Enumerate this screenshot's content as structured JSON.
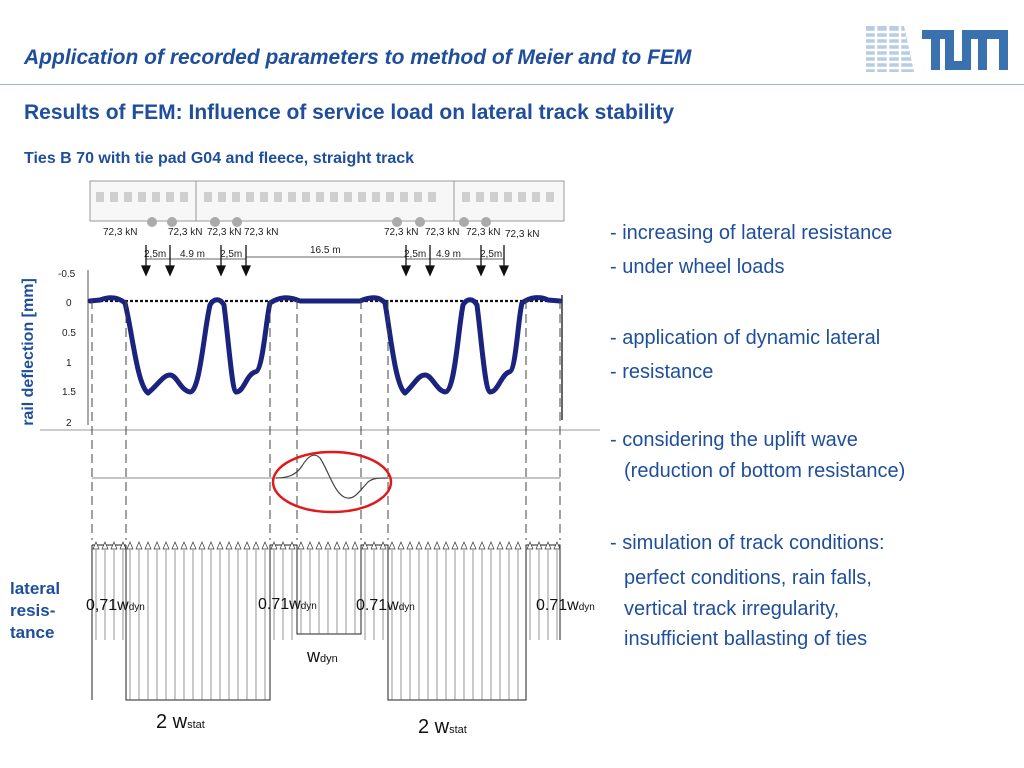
{
  "header": {
    "title": "Application of recorded parameters to method of Meier and to FEM",
    "logo_text": "TUM"
  },
  "subtitle": "Results of FEM: Influence of service load on lateral track stability",
  "figure": {
    "caption": "Ties B 70 with tie pad G04 and fleece, straight track",
    "y_axis_label": "rail deflection [mm]",
    "y_ticks": [
      "-0.5",
      "0",
      "0.5",
      "1",
      "1.5",
      "2"
    ],
    "loads": [
      "72,3 kN",
      "72,3 kN",
      "72,3 kN",
      "72,3 kN",
      "72,3 kN",
      "72,3 kN",
      "72,3 kN",
      "72,3 kN"
    ],
    "distances": {
      "left_a": "2,5m",
      "left_b": "4.9 m",
      "left_c": "2,5m",
      "middle": "16.5 m",
      "right_a": "2,5m",
      "right_b": "4.9 m",
      "right_c": "2,5m"
    },
    "resistance_labels": {
      "w_left": "0,71w",
      "w_mid_left": "0.71w",
      "w_mid_right": "0.71w",
      "w_right": "0.71w",
      "dyn_sub": "dyn",
      "w_dyn_main": "w",
      "stat_left": "2 w",
      "stat_right": "2 w",
      "stat_sub": "stat"
    },
    "lateral_label": [
      "lateral",
      "resis-",
      "tance"
    ],
    "colors": {
      "curve": "#1a237e",
      "highlight_circle": "#e0191b"
    }
  },
  "bullets": {
    "b1": "- increasing of lateral resistance",
    "b2": "- under wheel loads",
    "b3": "- application of dynamic lateral",
    "b4": "- resistance",
    "b5": "- considering the uplift wave",
    "b6": "(reduction of bottom resistance)",
    "b7": "- simulation of track conditions:",
    "b8": "perfect conditions, rain falls,",
    "b9": "vertical track irregularity,",
    "b10": "insufficient ballasting of ties"
  },
  "theme": {
    "accent": "#1f4e9c"
  }
}
